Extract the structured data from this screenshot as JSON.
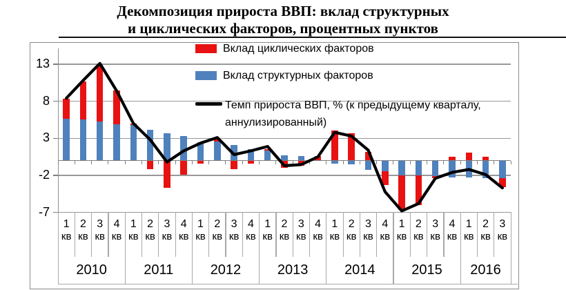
{
  "title": {
    "line1": "Декомпозиция прироста ВВП: вклад структурных",
    "line2": "и циклических факторов, процентных пунктов"
  },
  "legend": {
    "cyclical": "Вклад циклических факторов",
    "structural": "Вклад структурных факторов",
    "gdp_line1": "Темп прироста ВВП, % (к предыдущему кварталу,",
    "gdp_line2": "аннулизированный)"
  },
  "colors": {
    "cyclical": "#e81212",
    "structural": "#4f81bd",
    "gdp_line": "#000000",
    "gridline": "#979797"
  },
  "y_axis": {
    "ticks": [
      13,
      8,
      3,
      -2,
      -7
    ]
  },
  "x_axis": {
    "quarter_suffix": "кв",
    "years": [
      {
        "year": "2010",
        "quarters": [
          "1",
          "2",
          "3",
          "4"
        ]
      },
      {
        "year": "2011",
        "quarters": [
          "1",
          "2",
          "3",
          "4"
        ]
      },
      {
        "year": "2012",
        "quarters": [
          "1",
          "2",
          "3",
          "4"
        ]
      },
      {
        "year": "2013",
        "quarters": [
          "1",
          "2",
          "3",
          "4"
        ]
      },
      {
        "year": "2014",
        "quarters": [
          "1",
          "2",
          "3",
          "4"
        ]
      },
      {
        "year": "2015",
        "quarters": [
          "1",
          "2",
          "3",
          "4"
        ]
      },
      {
        "year": "2016",
        "quarters": [
          "1",
          "2",
          "3"
        ]
      }
    ]
  },
  "chart_data": {
    "type": "bar",
    "subtype": "stacked-bars-with-line-overlay",
    "title": "Декомпозиция прироста ВВП: вклад структурных и циклических факторов, процентных пунктов",
    "categories": [
      "2010-Q1",
      "2010-Q2",
      "2010-Q3",
      "2010-Q4",
      "2011-Q1",
      "2011-Q2",
      "2011-Q3",
      "2011-Q4",
      "2012-Q1",
      "2012-Q2",
      "2012-Q3",
      "2012-Q4",
      "2013-Q1",
      "2013-Q2",
      "2013-Q3",
      "2013-Q4",
      "2014-Q1",
      "2014-Q2",
      "2014-Q3",
      "2014-Q4",
      "2015-Q1",
      "2015-Q2",
      "2015-Q3",
      "2015-Q4",
      "2016-Q1",
      "2016-Q2",
      "2016-Q3"
    ],
    "series": [
      {
        "name": "Вклад структурных факторов",
        "type": "bar",
        "color": "#4f81bd",
        "values": [
          5.6,
          5.5,
          5.3,
          4.9,
          4.8,
          4.1,
          3.7,
          3.3,
          2.5,
          2.6,
          2.1,
          1.5,
          1.35,
          0.7,
          0.6,
          0.0,
          -0.4,
          -0.5,
          -1.25,
          -1.45,
          -2.0,
          -2.0,
          -2.1,
          -2.3,
          -2.3,
          -2.4,
          -2.4
        ]
      },
      {
        "name": "Вклад циклических факторов",
        "type": "bar",
        "color": "#e81212",
        "values": [
          2.7,
          5.2,
          7.6,
          4.6,
          0.2,
          -1.15,
          -3.7,
          -1.9,
          -0.4,
          0.3,
          -1.2,
          -0.4,
          0.2,
          -1.0,
          -0.7,
          0.6,
          4.05,
          3.65,
          1.2,
          -1.85,
          -4.7,
          -4.0,
          -0.25,
          0.5,
          1.1,
          0.5,
          -1.15
        ]
      },
      {
        "name": "Темп прироста ВВП, % (к предыдущему кварталу, аннулизированный)",
        "type": "line",
        "color": "#000000",
        "values": [
          8.4,
          10.8,
          13.1,
          9.4,
          5.0,
          2.8,
          -0.2,
          1.3,
          2.35,
          3.1,
          0.8,
          1.3,
          1.9,
          -0.7,
          -0.55,
          0.5,
          3.8,
          3.3,
          1.4,
          -4.2,
          -6.8,
          -5.8,
          -2.4,
          -1.6,
          -1.2,
          -1.9,
          -3.7
        ]
      }
    ],
    "ylim": [
      -7,
      13
    ],
    "yticks": [
      13,
      8,
      3,
      -2,
      -7
    ],
    "grid": "horizontal",
    "legend_position": "inside-top-right"
  }
}
